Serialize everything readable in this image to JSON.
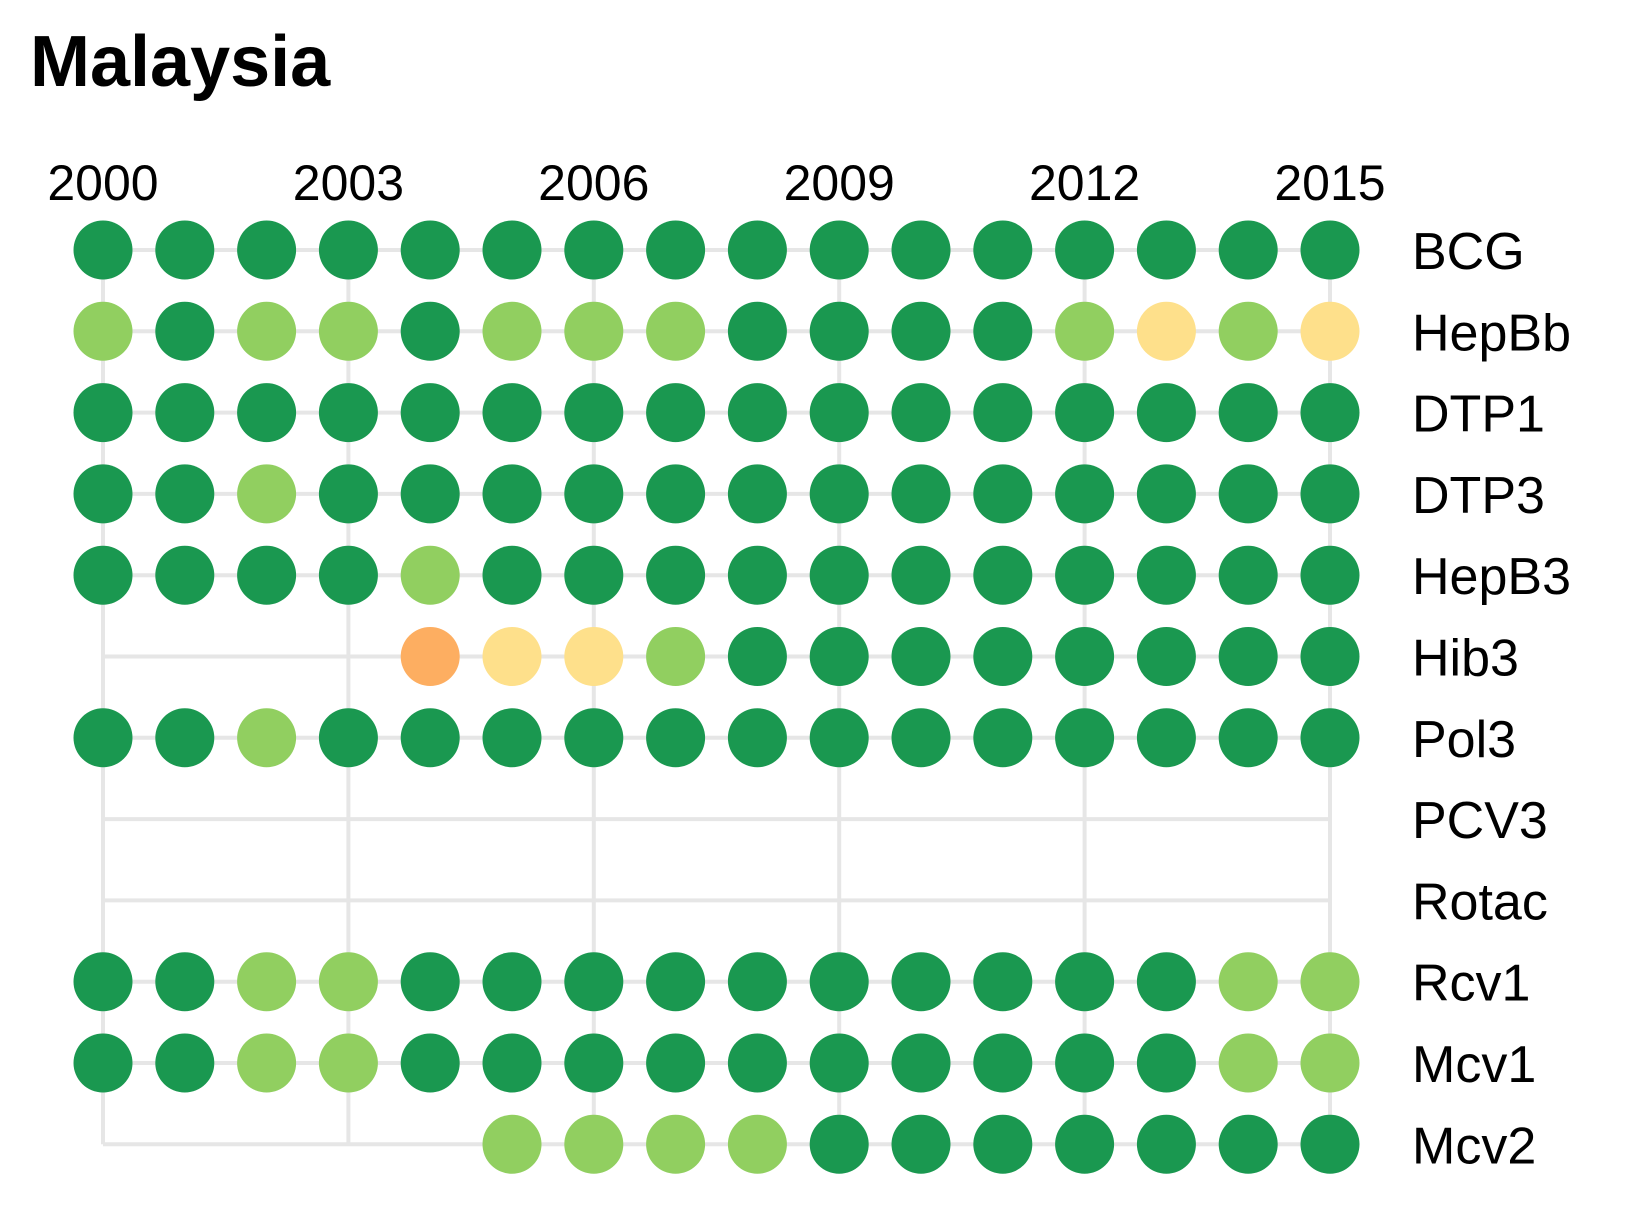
{
  "chart_data": {
    "type": "dot-matrix",
    "title": "Malaysia",
    "x_years": [
      2000,
      2001,
      2002,
      2003,
      2004,
      2005,
      2006,
      2007,
      2008,
      2009,
      2010,
      2011,
      2012,
      2013,
      2014,
      2015
    ],
    "x_ticks": [
      "2000",
      "2003",
      "2006",
      "2009",
      "2012",
      "2015"
    ],
    "legend": "none",
    "colors": {
      "dark_green": "#1a9850",
      "light_green": "#91cf60",
      "yellow": "#fee08b",
      "orange": "#fdae61"
    },
    "series": [
      {
        "name": "BCG",
        "values": [
          "dark_green",
          "dark_green",
          "dark_green",
          "dark_green",
          "dark_green",
          "dark_green",
          "dark_green",
          "dark_green",
          "dark_green",
          "dark_green",
          "dark_green",
          "dark_green",
          "dark_green",
          "dark_green",
          "dark_green",
          "dark_green"
        ]
      },
      {
        "name": "HepBb",
        "values": [
          "light_green",
          "dark_green",
          "light_green",
          "light_green",
          "dark_green",
          "light_green",
          "light_green",
          "light_green",
          "dark_green",
          "dark_green",
          "dark_green",
          "dark_green",
          "light_green",
          "yellow",
          "light_green",
          "yellow"
        ]
      },
      {
        "name": "DTP1",
        "values": [
          "dark_green",
          "dark_green",
          "dark_green",
          "dark_green",
          "dark_green",
          "dark_green",
          "dark_green",
          "dark_green",
          "dark_green",
          "dark_green",
          "dark_green",
          "dark_green",
          "dark_green",
          "dark_green",
          "dark_green",
          "dark_green"
        ]
      },
      {
        "name": "DTP3",
        "values": [
          "dark_green",
          "dark_green",
          "light_green",
          "dark_green",
          "dark_green",
          "dark_green",
          "dark_green",
          "dark_green",
          "dark_green",
          "dark_green",
          "dark_green",
          "dark_green",
          "dark_green",
          "dark_green",
          "dark_green",
          "dark_green"
        ]
      },
      {
        "name": "HepB3",
        "values": [
          "dark_green",
          "dark_green",
          "dark_green",
          "dark_green",
          "light_green",
          "dark_green",
          "dark_green",
          "dark_green",
          "dark_green",
          "dark_green",
          "dark_green",
          "dark_green",
          "dark_green",
          "dark_green",
          "dark_green",
          "dark_green"
        ]
      },
      {
        "name": "Hib3",
        "values": [
          null,
          null,
          null,
          null,
          "orange",
          "yellow",
          "yellow",
          "light_green",
          "dark_green",
          "dark_green",
          "dark_green",
          "dark_green",
          "dark_green",
          "dark_green",
          "dark_green",
          "dark_green"
        ]
      },
      {
        "name": "Pol3",
        "values": [
          "dark_green",
          "dark_green",
          "light_green",
          "dark_green",
          "dark_green",
          "dark_green",
          "dark_green",
          "dark_green",
          "dark_green",
          "dark_green",
          "dark_green",
          "dark_green",
          "dark_green",
          "dark_green",
          "dark_green",
          "dark_green"
        ]
      },
      {
        "name": "PCV3",
        "values": [
          null,
          null,
          null,
          null,
          null,
          null,
          null,
          null,
          null,
          null,
          null,
          null,
          null,
          null,
          null,
          null
        ]
      },
      {
        "name": "Rotac",
        "values": [
          null,
          null,
          null,
          null,
          null,
          null,
          null,
          null,
          null,
          null,
          null,
          null,
          null,
          null,
          null,
          null
        ]
      },
      {
        "name": "Rcv1",
        "values": [
          "dark_green",
          "dark_green",
          "light_green",
          "light_green",
          "dark_green",
          "dark_green",
          "dark_green",
          "dark_green",
          "dark_green",
          "dark_green",
          "dark_green",
          "dark_green",
          "dark_green",
          "dark_green",
          "light_green",
          "light_green"
        ]
      },
      {
        "name": "Mcv1",
        "values": [
          "dark_green",
          "dark_green",
          "light_green",
          "light_green",
          "dark_green",
          "dark_green",
          "dark_green",
          "dark_green",
          "dark_green",
          "dark_green",
          "dark_green",
          "dark_green",
          "dark_green",
          "dark_green",
          "light_green",
          "light_green"
        ]
      },
      {
        "name": "Mcv2",
        "values": [
          null,
          null,
          null,
          null,
          null,
          "light_green",
          "light_green",
          "light_green",
          "light_green",
          "dark_green",
          "dark_green",
          "dark_green",
          "dark_green",
          "dark_green",
          "dark_green",
          "dark_green"
        ]
      }
    ]
  }
}
